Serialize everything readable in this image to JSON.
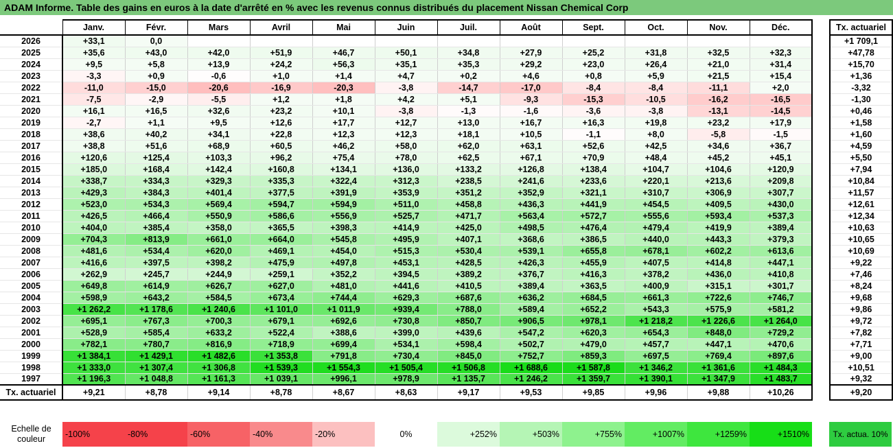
{
  "title": "ADAM Informe. Table des gains en euros à la date d'arrêté en % avec les revenus connus distribués du placement Nissan Chemical Corp",
  "chart_data": {
    "type": "table",
    "columns": [
      "Janv.",
      "Févr.",
      "Mars",
      "Avril",
      "Mai",
      "Juin",
      "Juil.",
      "Août",
      "Sept.",
      "Oct.",
      "Nov.",
      "Déc."
    ],
    "side_header": "Tx. actuariel",
    "rows": [
      {
        "year": "2026",
        "values": [
          "+33,1",
          "0,0",
          "",
          "",
          "",
          "",
          "",
          "",
          "",
          "",
          "",
          ""
        ],
        "nums": [
          33.1,
          0,
          null,
          null,
          null,
          null,
          null,
          null,
          null,
          null,
          null,
          null
        ],
        "rate": "+1 709,1"
      },
      {
        "year": "2025",
        "values": [
          "+35,6",
          "+43,0",
          "+42,0",
          "+51,9",
          "+46,7",
          "+50,1",
          "+34,8",
          "+27,9",
          "+25,2",
          "+31,8",
          "+32,5",
          "+32,3"
        ],
        "nums": [
          35.6,
          43.0,
          42.0,
          51.9,
          46.7,
          50.1,
          34.8,
          27.9,
          25.2,
          31.8,
          32.5,
          32.3
        ],
        "rate": "+47,78"
      },
      {
        "year": "2024",
        "values": [
          "+9,5",
          "+5,8",
          "+13,9",
          "+24,2",
          "+56,3",
          "+35,1",
          "+35,3",
          "+29,2",
          "+23,0",
          "+26,4",
          "+21,0",
          "+31,4"
        ],
        "nums": [
          9.5,
          5.8,
          13.9,
          24.2,
          56.3,
          35.1,
          35.3,
          29.2,
          23.0,
          26.4,
          21.0,
          31.4
        ],
        "rate": "+15,70"
      },
      {
        "year": "2023",
        "values": [
          "-3,3",
          "+0,9",
          "-0,6",
          "+1,0",
          "+1,4",
          "+4,7",
          "+0,2",
          "+4,6",
          "+0,8",
          "+5,9",
          "+21,5",
          "+15,4"
        ],
        "nums": [
          -3.3,
          0.9,
          -0.6,
          1.0,
          1.4,
          4.7,
          0.2,
          4.6,
          0.8,
          5.9,
          21.5,
          15.4
        ],
        "rate": "+1,36"
      },
      {
        "year": "2022",
        "values": [
          "-11,0",
          "-15,0",
          "-20,6",
          "-16,9",
          "-20,3",
          "-3,8",
          "-14,7",
          "-17,0",
          "-8,4",
          "-8,4",
          "-11,1",
          "+2,0"
        ],
        "nums": [
          -11.0,
          -15.0,
          -20.6,
          -16.9,
          -20.3,
          -3.8,
          -14.7,
          -17.0,
          -8.4,
          -8.4,
          -11.1,
          2.0
        ],
        "rate": "-3,32"
      },
      {
        "year": "2021",
        "values": [
          "-7,5",
          "-2,9",
          "-5,5",
          "+1,2",
          "+1,8",
          "+4,2",
          "+5,1",
          "-9,3",
          "-15,3",
          "-10,5",
          "-16,2",
          "-16,5"
        ],
        "nums": [
          -7.5,
          -2.9,
          -5.5,
          1.2,
          1.8,
          4.2,
          5.1,
          -9.3,
          -15.3,
          -10.5,
          -16.2,
          -16.5
        ],
        "rate": "-1,30"
      },
      {
        "year": "2020",
        "values": [
          "+16,1",
          "+16,5",
          "+32,6",
          "+23,2",
          "+10,1",
          "-3,8",
          "-1,3",
          "-1,6",
          "-3,6",
          "-3,8",
          "-13,1",
          "-14,5"
        ],
        "nums": [
          16.1,
          16.5,
          32.6,
          23.2,
          10.1,
          -3.8,
          -1.3,
          -1.6,
          -3.6,
          -3.8,
          -13.1,
          -14.5
        ],
        "rate": "+0,46"
      },
      {
        "year": "2019",
        "values": [
          "-2,7",
          "+1,1",
          "+9,5",
          "+12,6",
          "+17,7",
          "+12,7",
          "+13,0",
          "+16,7",
          "+16,3",
          "+19,8",
          "+23,2",
          "+17,9"
        ],
        "nums": [
          -2.7,
          1.1,
          9.5,
          12.6,
          17.7,
          12.7,
          13.0,
          16.7,
          16.3,
          19.8,
          23.2,
          17.9
        ],
        "rate": "+1,58"
      },
      {
        "year": "2018",
        "values": [
          "+38,6",
          "+40,2",
          "+34,1",
          "+22,8",
          "+12,3",
          "+12,3",
          "+18,1",
          "+10,5",
          "-1,1",
          "+8,0",
          "-5,8",
          "-1,5"
        ],
        "nums": [
          38.6,
          40.2,
          34.1,
          22.8,
          12.3,
          12.3,
          18.1,
          10.5,
          -1.1,
          8.0,
          -5.8,
          -1.5
        ],
        "rate": "+1,60"
      },
      {
        "year": "2017",
        "values": [
          "+38,8",
          "+51,6",
          "+68,9",
          "+60,5",
          "+46,2",
          "+58,0",
          "+62,0",
          "+63,1",
          "+52,6",
          "+42,5",
          "+34,6",
          "+36,7"
        ],
        "nums": [
          38.8,
          51.6,
          68.9,
          60.5,
          46.2,
          58.0,
          62.0,
          63.1,
          52.6,
          42.5,
          34.6,
          36.7
        ],
        "rate": "+4,59"
      },
      {
        "year": "2016",
        "values": [
          "+120,6",
          "+125,4",
          "+103,3",
          "+96,2",
          "+75,4",
          "+78,0",
          "+62,5",
          "+67,1",
          "+70,9",
          "+48,4",
          "+45,2",
          "+45,1"
        ],
        "nums": [
          120.6,
          125.4,
          103.3,
          96.2,
          75.4,
          78.0,
          62.5,
          67.1,
          70.9,
          48.4,
          45.2,
          45.1
        ],
        "rate": "+5,50"
      },
      {
        "year": "2015",
        "values": [
          "+185,0",
          "+168,4",
          "+142,4",
          "+160,8",
          "+134,1",
          "+136,0",
          "+133,2",
          "+126,8",
          "+138,4",
          "+104,7",
          "+104,6",
          "+120,9"
        ],
        "nums": [
          185.0,
          168.4,
          142.4,
          160.8,
          134.1,
          136.0,
          133.2,
          126.8,
          138.4,
          104.7,
          104.6,
          120.9
        ],
        "rate": "+7,94"
      },
      {
        "year": "2014",
        "values": [
          "+338,7",
          "+334,3",
          "+329,3",
          "+335,3",
          "+322,4",
          "+312,3",
          "+238,5",
          "+241,6",
          "+233,6",
          "+220,1",
          "+213,6",
          "+209,8"
        ],
        "nums": [
          338.7,
          334.3,
          329.3,
          335.3,
          322.4,
          312.3,
          238.5,
          241.6,
          233.6,
          220.1,
          213.6,
          209.8
        ],
        "rate": "+10,84"
      },
      {
        "year": "2013",
        "values": [
          "+429,3",
          "+384,3",
          "+401,4",
          "+377,5",
          "+391,9",
          "+353,9",
          "+351,2",
          "+352,9",
          "+321,1",
          "+310,7",
          "+306,9",
          "+307,7"
        ],
        "nums": [
          429.3,
          384.3,
          401.4,
          377.5,
          391.9,
          353.9,
          351.2,
          352.9,
          321.1,
          310.7,
          306.9,
          307.7
        ],
        "rate": "+11,57"
      },
      {
        "year": "2012",
        "values": [
          "+523,0",
          "+534,3",
          "+569,4",
          "+594,7",
          "+594,9",
          "+511,0",
          "+458,8",
          "+436,3",
          "+441,9",
          "+454,5",
          "+409,5",
          "+430,0"
        ],
        "nums": [
          523.0,
          534.3,
          569.4,
          594.7,
          594.9,
          511.0,
          458.8,
          436.3,
          441.9,
          454.5,
          409.5,
          430.0
        ],
        "rate": "+12,61"
      },
      {
        "year": "2011",
        "values": [
          "+426,5",
          "+466,4",
          "+550,9",
          "+586,6",
          "+556,9",
          "+525,7",
          "+471,7",
          "+563,4",
          "+572,7",
          "+555,6",
          "+593,4",
          "+537,3"
        ],
        "nums": [
          426.5,
          466.4,
          550.9,
          586.6,
          556.9,
          525.7,
          471.7,
          563.4,
          572.7,
          555.6,
          593.4,
          537.3
        ],
        "rate": "+12,34"
      },
      {
        "year": "2010",
        "values": [
          "+404,0",
          "+385,4",
          "+358,0",
          "+365,5",
          "+398,3",
          "+414,9",
          "+425,0",
          "+498,5",
          "+476,4",
          "+479,4",
          "+419,9",
          "+389,4"
        ],
        "nums": [
          404.0,
          385.4,
          358.0,
          365.5,
          398.3,
          414.9,
          425.0,
          498.5,
          476.4,
          479.4,
          419.9,
          389.4
        ],
        "rate": "+10,63"
      },
      {
        "year": "2009",
        "values": [
          "+704,3",
          "+813,9",
          "+661,0",
          "+664,0",
          "+545,8",
          "+495,9",
          "+407,1",
          "+368,6",
          "+386,5",
          "+440,0",
          "+443,3",
          "+379,3"
        ],
        "nums": [
          704.3,
          813.9,
          661.0,
          664.0,
          545.8,
          495.9,
          407.1,
          368.6,
          386.5,
          440.0,
          443.3,
          379.3
        ],
        "rate": "+10,65"
      },
      {
        "year": "2008",
        "values": [
          "+481,6",
          "+534,4",
          "+620,0",
          "+469,1",
          "+454,0",
          "+515,3",
          "+530,4",
          "+539,1",
          "+655,8",
          "+678,1",
          "+602,2",
          "+613,6"
        ],
        "nums": [
          481.6,
          534.4,
          620.0,
          469.1,
          454.0,
          515.3,
          530.4,
          539.1,
          655.8,
          678.1,
          602.2,
          613.6
        ],
        "rate": "+10,69"
      },
      {
        "year": "2007",
        "values": [
          "+416,6",
          "+397,5",
          "+398,2",
          "+475,9",
          "+497,8",
          "+453,1",
          "+428,5",
          "+426,3",
          "+455,9",
          "+407,5",
          "+414,8",
          "+447,1"
        ],
        "nums": [
          416.6,
          397.5,
          398.2,
          475.9,
          497.8,
          453.1,
          428.5,
          426.3,
          455.9,
          407.5,
          414.8,
          447.1
        ],
        "rate": "+9,22"
      },
      {
        "year": "2006",
        "values": [
          "+262,9",
          "+245,7",
          "+244,9",
          "+259,1",
          "+352,2",
          "+394,5",
          "+389,2",
          "+376,7",
          "+416,3",
          "+378,2",
          "+436,0",
          "+410,8"
        ],
        "nums": [
          262.9,
          245.7,
          244.9,
          259.1,
          352.2,
          394.5,
          389.2,
          376.7,
          416.3,
          378.2,
          436.0,
          410.8
        ],
        "rate": "+7,46"
      },
      {
        "year": "2005",
        "values": [
          "+649,8",
          "+614,9",
          "+626,7",
          "+627,0",
          "+481,0",
          "+441,6",
          "+410,5",
          "+389,4",
          "+363,5",
          "+400,9",
          "+315,1",
          "+301,7"
        ],
        "nums": [
          649.8,
          614.9,
          626.7,
          627.0,
          481.0,
          441.6,
          410.5,
          389.4,
          363.5,
          400.9,
          315.1,
          301.7
        ],
        "rate": "+8,24"
      },
      {
        "year": "2004",
        "values": [
          "+598,9",
          "+643,2",
          "+584,5",
          "+673,4",
          "+744,4",
          "+629,3",
          "+687,6",
          "+636,2",
          "+684,5",
          "+661,3",
          "+722,6",
          "+746,7"
        ],
        "nums": [
          598.9,
          643.2,
          584.5,
          673.4,
          744.4,
          629.3,
          687.6,
          636.2,
          684.5,
          661.3,
          722.6,
          746.7
        ],
        "rate": "+9,68"
      },
      {
        "year": "2003",
        "values": [
          "+1 262,2",
          "+1 178,6",
          "+1 240,6",
          "+1 101,0",
          "+1 011,9",
          "+939,4",
          "+788,0",
          "+589,4",
          "+652,2",
          "+543,3",
          "+575,9",
          "+581,2"
        ],
        "nums": [
          1262.2,
          1178.6,
          1240.6,
          1101.0,
          1011.9,
          939.4,
          788.0,
          589.4,
          652.2,
          543.3,
          575.9,
          581.2
        ],
        "rate": "+9,86"
      },
      {
        "year": "2002",
        "values": [
          "+695,1",
          "+767,3",
          "+700,3",
          "+679,1",
          "+692,6",
          "+730,8",
          "+850,7",
          "+906,5",
          "+978,1",
          "+1 218,2",
          "+1 226,6",
          "+1 264,0"
        ],
        "nums": [
          695.1,
          767.3,
          700.3,
          679.1,
          692.6,
          730.8,
          850.7,
          906.5,
          978.1,
          1218.2,
          1226.6,
          1264.0
        ],
        "rate": "+9,72"
      },
      {
        "year": "2001",
        "values": [
          "+528,9",
          "+585,4",
          "+633,2",
          "+522,4",
          "+388,6",
          "+399,0",
          "+439,6",
          "+547,2",
          "+620,3",
          "+654,3",
          "+848,0",
          "+729,2"
        ],
        "nums": [
          528.9,
          585.4,
          633.2,
          522.4,
          388.6,
          399.0,
          439.6,
          547.2,
          620.3,
          654.3,
          848.0,
          729.2
        ],
        "rate": "+7,82"
      },
      {
        "year": "2000",
        "values": [
          "+782,1",
          "+780,7",
          "+816,9",
          "+718,9",
          "+699,4",
          "+534,1",
          "+598,4",
          "+502,7",
          "+479,0",
          "+457,7",
          "+447,1",
          "+470,6"
        ],
        "nums": [
          782.1,
          780.7,
          816.9,
          718.9,
          699.4,
          534.1,
          598.4,
          502.7,
          479.0,
          457.7,
          447.1,
          470.6
        ],
        "rate": "+7,71"
      },
      {
        "year": "1999",
        "values": [
          "+1 384,1",
          "+1 429,1",
          "+1 482,6",
          "+1 353,8",
          "+791,8",
          "+730,4",
          "+845,0",
          "+752,7",
          "+859,3",
          "+697,5",
          "+769,4",
          "+897,6"
        ],
        "nums": [
          1384.1,
          1429.1,
          1482.6,
          1353.8,
          791.8,
          730.4,
          845.0,
          752.7,
          859.3,
          697.5,
          769.4,
          897.6
        ],
        "rate": "+9,00"
      },
      {
        "year": "1998",
        "values": [
          "+1 333,0",
          "+1 307,4",
          "+1 306,8",
          "+1 539,3",
          "+1 554,3",
          "+1 505,4",
          "+1 506,8",
          "+1 688,6",
          "+1 587,8",
          "+1 346,2",
          "+1 361,6",
          "+1 484,3"
        ],
        "nums": [
          1333.0,
          1307.4,
          1306.8,
          1539.3,
          1554.3,
          1505.4,
          1506.8,
          1688.6,
          1587.8,
          1346.2,
          1361.6,
          1484.3
        ],
        "rate": "+10,51"
      },
      {
        "year": "1997",
        "values": [
          "+1 196,3",
          "+1 048,8",
          "+1 161,3",
          "+1 039,1",
          "+996,1",
          "+978,9",
          "+1 135,7",
          "+1 246,2",
          "+1 359,7",
          "+1 390,1",
          "+1 347,9",
          "+1 483,7"
        ],
        "nums": [
          1196.3,
          1048.8,
          1161.3,
          1039.1,
          996.1,
          978.9,
          1135.7,
          1246.2,
          1359.7,
          1390.1,
          1347.9,
          1483.7
        ],
        "rate": "+9,32"
      }
    ],
    "footer": {
      "label": "Tx. actuariel",
      "values": [
        "+9,21",
        "+8,78",
        "+9,14",
        "+8,78",
        "+8,67",
        "+8,63",
        "+9,17",
        "+9,53",
        "+9,85",
        "+9,96",
        "+9,88",
        "+10,26"
      ],
      "rate": "+9,20"
    },
    "legend": {
      "label": "Echelle de couleur",
      "stops": [
        {
          "text": "-100%",
          "color": "#f5424a",
          "kind": "neg"
        },
        {
          "text": "-80%",
          "color": "#f5424a",
          "kind": "neg"
        },
        {
          "text": "-60%",
          "color": "#f76266",
          "kind": "neg"
        },
        {
          "text": "-40%",
          "color": "#f98a8c",
          "kind": "neg"
        },
        {
          "text": "-20%",
          "color": "#fcc0c0",
          "kind": "neg"
        },
        {
          "text": "0%",
          "color": "#ffffff",
          "kind": "zero"
        },
        {
          "text": "+252%",
          "color": "#dcfadc",
          "kind": "pos"
        },
        {
          "text": "+503%",
          "color": "#b5f5b5",
          "kind": "pos"
        },
        {
          "text": "+755%",
          "color": "#8ef28e",
          "kind": "pos"
        },
        {
          "text": "+1007%",
          "color": "#62ec62",
          "kind": "pos"
        },
        {
          "text": "+1259%",
          "color": "#3ee63e",
          "kind": "pos"
        },
        {
          "text": "+1510%",
          "color": "#17de17",
          "kind": "pos"
        }
      ],
      "side_text": "Tx. actua. 10%",
      "side_color": "#2ecc40"
    }
  }
}
